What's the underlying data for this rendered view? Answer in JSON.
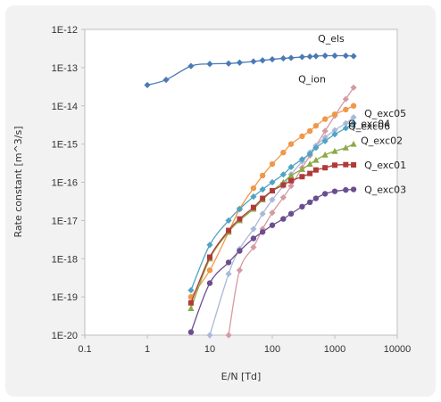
{
  "chart_data": {
    "type": "scatter",
    "xlabel": "E/N [Td]",
    "ylabel": "Rate constant [m^3/s]",
    "x_scale": "log",
    "y_scale": "log",
    "xlim": [
      0.1,
      10000
    ],
    "ylim": [
      1e-20,
      1e-12
    ],
    "x_tick_labels": [
      "0.1",
      "1",
      "10",
      "100",
      "1000",
      "10000"
    ],
    "y_tick_labels": [
      "1E-20",
      "1E-19",
      "1E-18",
      "1E-17",
      "1E-16",
      "1E-15",
      "1E-14",
      "1E-13",
      "1E-12"
    ],
    "grid": false,
    "legend": "labels placed next to each series",
    "series": [
      {
        "name": "Q_els",
        "color": "#4a7ab5",
        "marker": "diamond",
        "x": [
          1,
          2,
          5,
          10,
          20,
          30,
          50,
          70,
          100,
          150,
          200,
          300,
          400,
          500,
          700,
          1000,
          1500,
          2000
        ],
        "y": [
          3.5e-14,
          4.8e-14,
          1.1e-13,
          1.25e-13,
          1.28e-13,
          1.35e-13,
          1.45e-13,
          1.55e-13,
          1.65e-13,
          1.75e-13,
          1.8e-13,
          1.9e-13,
          1.95e-13,
          2e-13,
          2.05e-13,
          2.05e-13,
          2.05e-13,
          2e-13
        ]
      },
      {
        "name": "Q_ion",
        "color": "#d49ba3",
        "marker": "diamond",
        "x": [
          20,
          30,
          50,
          70,
          100,
          150,
          200,
          300,
          400,
          500,
          700,
          1000,
          1500,
          2000
        ],
        "y": [
          1e-20,
          5e-19,
          2e-18,
          6e-18,
          1.6e-17,
          4e-17,
          8e-17,
          2.4e-16,
          5e-16,
          9e-16,
          2.2e-15,
          5.5e-15,
          1.5e-14,
          3e-14
        ]
      },
      {
        "name": "Q_exc05",
        "color": "#f0984a",
        "marker": "circle",
        "x": [
          5,
          10,
          20,
          30,
          50,
          70,
          100,
          150,
          200,
          300,
          400,
          500,
          700,
          1000,
          1500,
          2000
        ],
        "y": [
          1e-19,
          5e-19,
          5e-18,
          2e-17,
          7e-17,
          1.5e-16,
          3e-16,
          6e-16,
          1e-15,
          1.6e-15,
          2.2e-15,
          3e-15,
          4.5e-15,
          6e-15,
          8e-15,
          1e-14
        ]
      },
      {
        "name": "Q_exc06",
        "color": "#a9b9d9",
        "marker": "diamond",
        "x": [
          10,
          20,
          30,
          50,
          70,
          100,
          150,
          200,
          300,
          400,
          500,
          700,
          1000,
          1500,
          2000
        ],
        "y": [
          1e-20,
          4e-19,
          1.8e-18,
          6e-18,
          1.5e-17,
          3.5e-17,
          8e-17,
          1.6e-16,
          3.5e-16,
          6e-16,
          9e-16,
          1.5e-15,
          2.3e-15,
          3.5e-15,
          5e-15
        ]
      },
      {
        "name": "Q_exc04",
        "color": "#4fa3c3",
        "marker": "diamond",
        "x": [
          5,
          10,
          20,
          30,
          50,
          70,
          100,
          150,
          200,
          300,
          400,
          500,
          700,
          1000,
          1500,
          2000
        ],
        "y": [
          1.5e-19,
          2.3e-18,
          1e-17,
          2e-17,
          4.2e-17,
          6.5e-17,
          1e-16,
          1.6e-16,
          2.5e-16,
          4e-16,
          5.5e-16,
          8e-16,
          1.2e-15,
          1.8e-15,
          2.6e-15,
          3.5e-15
        ]
      },
      {
        "name": "Q_exc02",
        "color": "#8aaa45",
        "marker": "triangle",
        "x": [
          5,
          10,
          20,
          30,
          50,
          70,
          100,
          150,
          200,
          300,
          400,
          500,
          700,
          1000,
          1500,
          2000
        ],
        "y": [
          5e-20,
          1e-18,
          5e-18,
          1e-17,
          2e-17,
          3.5e-17,
          6e-17,
          1e-16,
          1.5e-16,
          2.2e-16,
          3e-16,
          3.8e-16,
          5.2e-16,
          6.5e-16,
          8e-16,
          1e-15
        ]
      },
      {
        "name": "Q_exc01",
        "color": "#b03a38",
        "marker": "square",
        "x": [
          5,
          10,
          20,
          30,
          50,
          70,
          100,
          150,
          200,
          300,
          400,
          500,
          700,
          1000,
          1500,
          2000
        ],
        "y": [
          7e-20,
          1.1e-18,
          5.5e-18,
          1.1e-17,
          2.2e-17,
          3.8e-17,
          6e-17,
          8.5e-17,
          1.1e-16,
          1.4e-16,
          1.7e-16,
          2.1e-16,
          2.4e-16,
          2.8e-16,
          2.9e-16,
          2.85e-16
        ]
      },
      {
        "name": "Q_exc03",
        "color": "#6b4e8f",
        "marker": "circle",
        "x": [
          5,
          10,
          20,
          30,
          50,
          70,
          100,
          150,
          200,
          300,
          400,
          500,
          700,
          1000,
          1500,
          2000
        ],
        "y": [
          1.2e-20,
          2.3e-19,
          8e-19,
          1.6e-18,
          3.4e-18,
          5e-18,
          7.5e-18,
          1.1e-17,
          1.5e-17,
          2.3e-17,
          3e-17,
          3.8e-17,
          5e-17,
          5.8e-17,
          6.3e-17,
          6.5e-17
        ]
      }
    ]
  }
}
